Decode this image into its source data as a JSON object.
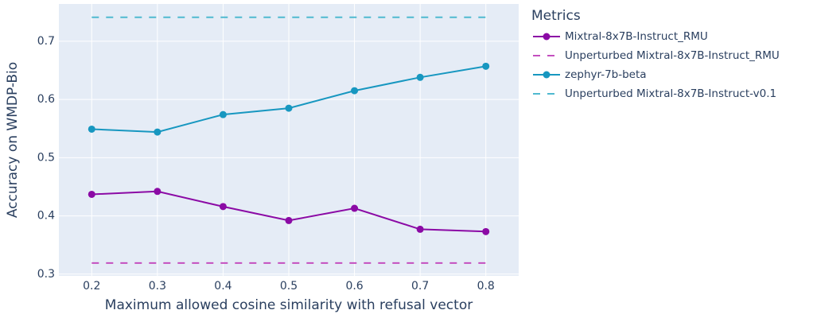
{
  "chart_data": {
    "type": "line",
    "title": "",
    "xlabel": "Maximum allowed cosine similarity with refusal vector",
    "ylabel": "Accuracy on WMDP-Bio",
    "x": [
      0.2,
      0.3,
      0.4,
      0.5,
      0.6,
      0.7,
      0.8
    ],
    "x_tick_labels": [
      "0.2",
      "0.3",
      "0.4",
      "0.5",
      "0.6",
      "0.7",
      "0.8"
    ],
    "y_ticks": [
      0.3,
      0.4,
      0.5,
      0.6,
      0.7
    ],
    "y_tick_labels": [
      "0.3",
      "0.4",
      "0.5",
      "0.6",
      "0.7"
    ],
    "xlim": [
      0.15,
      0.85
    ],
    "ylim": [
      0.297,
      0.764
    ],
    "grid": true,
    "background_color": "#e5ecf6",
    "legend": {
      "title": "Metrics",
      "placement": "right"
    },
    "series": [
      {
        "name": "Mixtral-8x7B-Instruct_RMU",
        "style": "line+markers",
        "color": "#8b0aa5",
        "values": [
          0.437,
          0.442,
          0.416,
          0.392,
          0.413,
          0.377,
          0.373
        ]
      },
      {
        "name": "Unperturbed Mixtral-8x7B-Instruct_RMU",
        "style": "dash",
        "color": "#c44fbf",
        "values": [
          0.319,
          0.319,
          0.319,
          0.319,
          0.319,
          0.319,
          0.319
        ]
      },
      {
        "name": "zephyr-7b-beta",
        "style": "line+markers",
        "color": "#1797c0",
        "values": [
          0.549,
          0.544,
          0.574,
          0.585,
          0.615,
          0.638,
          0.657
        ]
      },
      {
        "name": "Unperturbed Mixtral-8x7B-Instruct-v0.1",
        "style": "dash",
        "color": "#4fb9d0",
        "values": [
          0.741,
          0.741,
          0.741,
          0.741,
          0.741,
          0.741,
          0.741
        ]
      }
    ]
  }
}
